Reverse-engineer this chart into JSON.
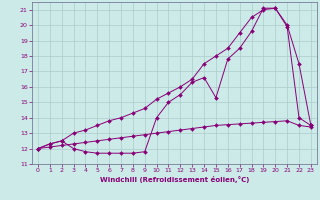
{
  "xlabel": "Windchill (Refroidissement éolien,°C)",
  "bg_color": "#cceae7",
  "line_color": "#880077",
  "grid_color": "#aacccc",
  "xlim": [
    -0.5,
    23.5
  ],
  "ylim": [
    11,
    21.5
  ],
  "xticks": [
    0,
    1,
    2,
    3,
    4,
    5,
    6,
    7,
    8,
    9,
    10,
    11,
    12,
    13,
    14,
    15,
    16,
    17,
    18,
    19,
    20,
    21,
    22,
    23
  ],
  "yticks": [
    11,
    12,
    13,
    14,
    15,
    16,
    17,
    18,
    19,
    20,
    21
  ],
  "line1_x": [
    0,
    1,
    2,
    3,
    4,
    5,
    6,
    7,
    8,
    9,
    10,
    11,
    12,
    13,
    14,
    15,
    16,
    17,
    18,
    19,
    20,
    21,
    22,
    23
  ],
  "line1_y": [
    12.0,
    12.1,
    12.2,
    12.3,
    12.4,
    12.5,
    12.6,
    12.7,
    12.8,
    12.9,
    13.0,
    13.1,
    13.2,
    13.3,
    13.4,
    13.5,
    13.55,
    13.6,
    13.65,
    13.7,
    13.75,
    13.8,
    13.5,
    13.4
  ],
  "line2_x": [
    0,
    1,
    2,
    3,
    4,
    5,
    6,
    7,
    8,
    9,
    10,
    11,
    12,
    13,
    14,
    15,
    16,
    17,
    18,
    19,
    20,
    21,
    22,
    23
  ],
  "line2_y": [
    12.0,
    12.3,
    12.5,
    12.0,
    11.8,
    11.7,
    11.7,
    11.7,
    11.7,
    11.8,
    14.0,
    15.0,
    15.5,
    16.3,
    16.6,
    15.3,
    17.8,
    18.5,
    19.6,
    21.1,
    21.1,
    20.0,
    17.5,
    13.5
  ],
  "line3_x": [
    0,
    1,
    2,
    3,
    4,
    5,
    6,
    7,
    8,
    9,
    10,
    11,
    12,
    13,
    14,
    15,
    16,
    17,
    18,
    19,
    20,
    21,
    22,
    23
  ],
  "line3_y": [
    12.0,
    12.3,
    12.5,
    13.0,
    13.2,
    13.5,
    13.8,
    14.0,
    14.3,
    14.6,
    15.2,
    15.6,
    16.0,
    16.5,
    17.5,
    18.0,
    18.5,
    19.5,
    20.5,
    21.0,
    21.1,
    19.9,
    14.0,
    13.5
  ]
}
